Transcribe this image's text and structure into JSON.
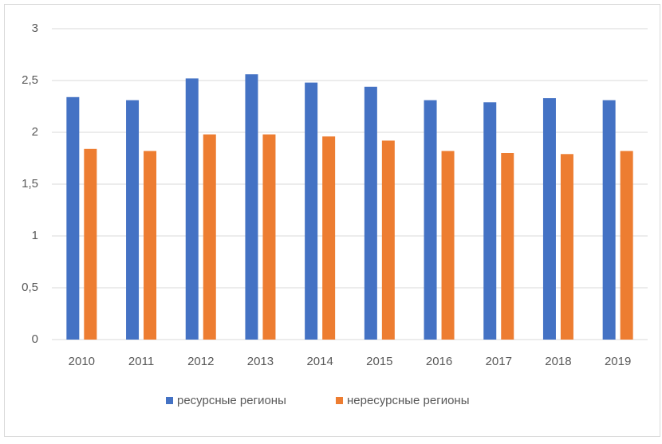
{
  "chart_data": {
    "type": "bar",
    "categories": [
      "2010",
      "2011",
      "2012",
      "2013",
      "2014",
      "2015",
      "2016",
      "2017",
      "2018",
      "2019"
    ],
    "series": [
      {
        "name": "ресурсные регионы",
        "color": "#4472c4",
        "values": [
          2.34,
          2.31,
          2.52,
          2.56,
          2.48,
          2.44,
          2.31,
          2.29,
          2.33,
          2.31
        ]
      },
      {
        "name": "нересурсные регионы",
        "color": "#ed7d31",
        "values": [
          1.84,
          1.82,
          1.98,
          1.98,
          1.96,
          1.92,
          1.82,
          1.8,
          1.79,
          1.82
        ]
      }
    ],
    "ylim": [
      0,
      3
    ],
    "yticks": [
      0,
      {
        "value": 0.5,
        "label": "0,5"
      },
      1,
      {
        "value": 1.5,
        "label": "1,5"
      },
      2,
      {
        "value": 2.5,
        "label": "2,5"
      },
      3
    ],
    "grid": true,
    "legend": "bottom"
  }
}
